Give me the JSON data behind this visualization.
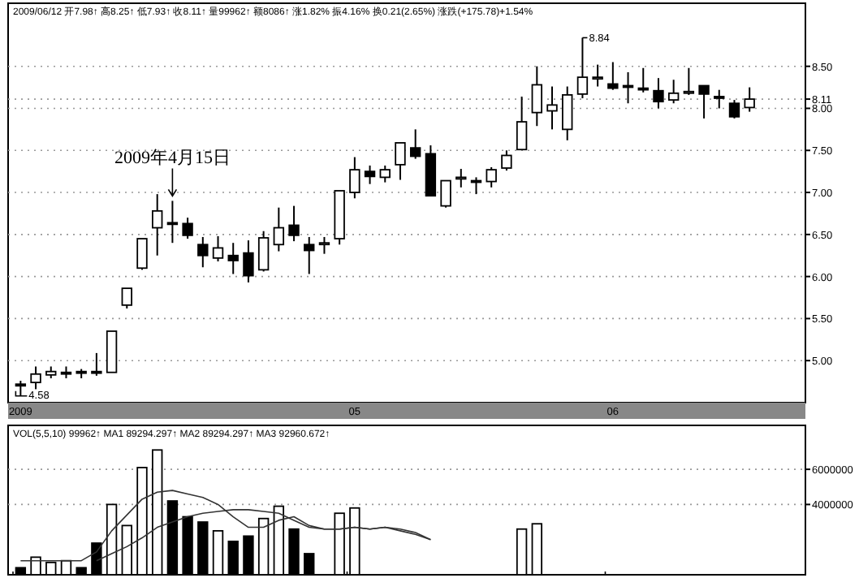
{
  "chart_data": [
    {
      "type": "candlestick",
      "subtitle": "2009/06/12 开7.98↑ 高8.25↑ 低7.93↑ 收8.11↑ 量99962↑ 额8086↑ 涨1.82% 振4.16% 换0.21(2.65%) 涨跌(+175.78)+1.54%",
      "categories": [
        "2009",
        null,
        null,
        null,
        null,
        null,
        null,
        null,
        null,
        null,
        null,
        null,
        null,
        null,
        null,
        null,
        null,
        null,
        null,
        null,
        null,
        null,
        "05",
        null,
        null,
        null,
        null,
        null,
        null,
        null,
        null,
        null,
        null,
        null,
        null,
        null,
        null,
        null,
        null,
        "06",
        null,
        null,
        null,
        null,
        null,
        null,
        null,
        null,
        null
      ],
      "ohlc": [
        [
          4.72,
          4.76,
          4.58,
          4.7
        ],
        [
          4.74,
          4.93,
          4.66,
          4.84
        ],
        [
          4.83,
          4.93,
          4.79,
          4.87
        ],
        [
          4.86,
          4.93,
          4.79,
          4.86
        ],
        [
          4.87,
          4.9,
          4.79,
          4.86
        ],
        [
          4.87,
          5.09,
          4.82,
          4.86
        ],
        [
          4.86,
          5.35,
          4.86,
          5.35
        ],
        [
          5.66,
          5.86,
          5.62,
          5.86
        ],
        [
          6.1,
          6.45,
          6.08,
          6.45
        ],
        [
          6.58,
          6.98,
          6.25,
          6.78
        ],
        [
          6.64,
          6.9,
          6.4,
          6.63
        ],
        [
          6.63,
          6.7,
          6.45,
          6.49
        ],
        [
          6.38,
          6.47,
          6.11,
          6.25
        ],
        [
          6.22,
          6.48,
          6.18,
          6.34
        ],
        [
          6.25,
          6.4,
          6.03,
          6.19
        ],
        [
          6.28,
          6.43,
          5.93,
          6.01
        ],
        [
          6.08,
          6.54,
          6.06,
          6.46
        ],
        [
          6.38,
          6.82,
          6.3,
          6.58
        ],
        [
          6.61,
          6.84,
          6.42,
          6.49
        ],
        [
          6.38,
          6.47,
          6.03,
          6.31
        ],
        [
          6.39,
          6.47,
          6.27,
          6.4
        ],
        [
          6.45,
          7.02,
          6.38,
          7.02
        ],
        [
          7.0,
          7.42,
          6.93,
          7.27
        ],
        [
          7.25,
          7.32,
          7.1,
          7.19
        ],
        [
          7.18,
          7.32,
          7.12,
          7.27
        ],
        [
          7.33,
          7.59,
          7.15,
          7.59
        ],
        [
          7.53,
          7.75,
          7.4,
          7.43
        ],
        [
          7.46,
          7.56,
          6.96,
          6.96
        ],
        [
          6.84,
          7.14,
          6.82,
          7.14
        ],
        [
          7.17,
          7.28,
          7.06,
          7.18
        ],
        [
          7.14,
          7.18,
          6.98,
          7.14
        ],
        [
          7.13,
          7.3,
          7.06,
          7.27
        ],
        [
          7.29,
          7.5,
          7.26,
          7.44
        ],
        [
          7.51,
          8.14,
          7.51,
          7.84
        ],
        [
          7.95,
          8.5,
          7.79,
          8.28
        ],
        [
          7.97,
          8.26,
          7.75,
          8.04
        ],
        [
          7.75,
          8.26,
          7.62,
          8.16
        ],
        [
          8.17,
          8.84,
          8.12,
          8.37
        ],
        [
          8.36,
          8.52,
          8.26,
          8.37
        ],
        [
          8.29,
          8.55,
          8.22,
          8.24
        ],
        [
          8.27,
          8.43,
          8.06,
          8.26
        ],
        [
          8.24,
          8.48,
          8.19,
          8.24
        ],
        [
          8.21,
          8.36,
          8.0,
          8.08
        ],
        [
          8.1,
          8.34,
          8.06,
          8.18
        ],
        [
          8.19,
          8.48,
          8.16,
          8.2
        ],
        [
          8.27,
          8.27,
          7.88,
          8.17
        ],
        [
          8.14,
          8.22,
          8.0,
          8.13
        ],
        [
          8.06,
          8.1,
          7.88,
          7.9
        ],
        [
          8.01,
          8.25,
          7.96,
          8.11
        ]
      ],
      "ylim": [
        4.5,
        9.25
      ],
      "yticks": [
        {
          "value": 5,
          "label": "5.00"
        },
        {
          "value": 5.5,
          "label": "5.50"
        },
        {
          "value": 6,
          "label": "6.00"
        },
        {
          "value": 6.5,
          "label": "6.50"
        },
        {
          "value": 7,
          "label": "7.00"
        },
        {
          "value": 7.5,
          "label": "7.50"
        },
        {
          "value": 8,
          "label": "8.00"
        },
        {
          "value": 8.11,
          "label": "8.11"
        },
        {
          "value": 8.5,
          "label": "8.50"
        }
      ],
      "grid": "y",
      "annotations": [
        {
          "text": "2009年4月15日",
          "y": 6.9
        },
        "8.84",
        {
          "text": "4.58",
          "y": 4.58
        }
      ]
    },
    {
      "type": "bar",
      "subtitle": "VOL(5,5,10) 99962↑ MA1 89294.297↑ MA2 89294.297↑ MA3 92960.672↑",
      "tick_labels": "y",
      "categories": [
        "2009",
        null,
        null,
        null,
        null,
        null,
        null,
        null,
        null,
        null,
        null,
        null,
        null,
        null,
        null,
        null,
        null,
        null,
        null,
        null,
        null,
        null,
        "05",
        null,
        null,
        null,
        null,
        null,
        null,
        null,
        null,
        null,
        null,
        null,
        null,
        null,
        null,
        null,
        null,
        "06",
        null,
        null,
        null,
        null,
        null,
        null,
        null,
        null,
        null
      ],
      "series": [
        {
          "type": "bar",
          "values": [
            400000,
            1000000,
            700000,
            800000,
            400000,
            1800000,
            4000000,
            2800000,
            6100000,
            7100000,
            4200000,
            3300000,
            3000000,
            2500000,
            1900000,
            2200000,
            3200000,
            3900000,
            2600000,
            1200000,
            null,
            3500000,
            3800000,
            null,
            null,
            null,
            null,
            null,
            null,
            null,
            null,
            null,
            null,
            2600000,
            2900000,
            null,
            null,
            null,
            null,
            null,
            null,
            null,
            null,
            null,
            null,
            null,
            null,
            null,
            null
          ],
          "colors": [
            "#000000",
            "#ffffff",
            "#ffffff",
            "#ffffff",
            "#000000",
            "#000000",
            "#ffffff",
            "#ffffff",
            "#ffffff",
            "#ffffff",
            "#000000",
            "#000000",
            "#000000",
            "#ffffff",
            "#000000",
            "#000000",
            "#ffffff",
            "#ffffff",
            "#000000",
            "#000000",
            null,
            "#ffffff",
            "#ffffff",
            null,
            null,
            null,
            null,
            null,
            null,
            null,
            null,
            null,
            null,
            "#ffffff",
            "#ffffff",
            null,
            null,
            null,
            null,
            null,
            null,
            null,
            null,
            null,
            null,
            null,
            null,
            null,
            null
          ]
        },
        {
          "type": "line",
          "color": "#333333",
          "values": [
            800000,
            800000,
            800000,
            800000,
            800000,
            1300000,
            2500000,
            3400000,
            4300000,
            4700000,
            4800000,
            4600000,
            4400000,
            4000000,
            3300000,
            2700000,
            2700000,
            3100000,
            3300000,
            2800000,
            2600000,
            2600000,
            2700000,
            2600000,
            2700000,
            2500000,
            2300000,
            2000000,
            null,
            null,
            null,
            null,
            null,
            null,
            null,
            null,
            null,
            null,
            null,
            null,
            null,
            null,
            null,
            null,
            null,
            null,
            null,
            null,
            null
          ]
        },
        {
          "type": "line",
          "color": "#333333",
          "values": [
            null,
            null,
            null,
            null,
            null,
            800000,
            1200000,
            1600000,
            2100000,
            2700000,
            3000000,
            3300000,
            3500000,
            3600000,
            3700000,
            3700000,
            3600000,
            3500000,
            3100000,
            2700000,
            2600000,
            2600000,
            2700000,
            2600000,
            2700000,
            2600000,
            2400000,
            2000000,
            null,
            null,
            null,
            null,
            null,
            null,
            null,
            null,
            null,
            null,
            null,
            null,
            null,
            null,
            null,
            null,
            null,
            null,
            null,
            null,
            null
          ]
        }
      ],
      "ylim": [
        0,
        8500000
      ],
      "yticks": [
        4000000,
        6000000
      ],
      "grid": "y"
    }
  ]
}
